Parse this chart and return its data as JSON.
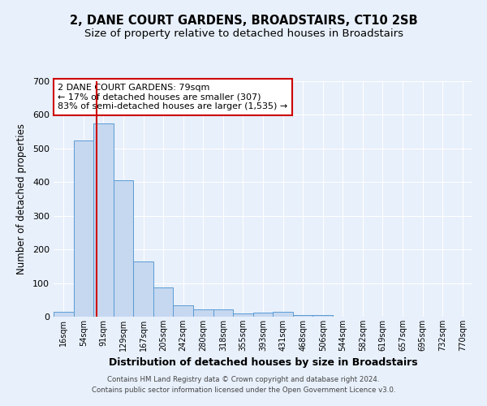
{
  "title1": "2, DANE COURT GARDENS, BROADSTAIRS, CT10 2SB",
  "title2": "Size of property relative to detached houses in Broadstairs",
  "xlabel": "Distribution of detached houses by size in Broadstairs",
  "ylabel": "Number of detached properties",
  "bin_labels": [
    "16sqm",
    "54sqm",
    "91sqm",
    "129sqm",
    "167sqm",
    "205sqm",
    "242sqm",
    "280sqm",
    "318sqm",
    "355sqm",
    "393sqm",
    "431sqm",
    "468sqm",
    "506sqm",
    "544sqm",
    "582sqm",
    "619sqm",
    "657sqm",
    "695sqm",
    "732sqm",
    "770sqm"
  ],
  "bar_values": [
    15,
    523,
    575,
    405,
    163,
    88,
    35,
    22,
    22,
    9,
    13,
    14,
    6,
    5,
    0,
    0,
    0,
    0,
    0,
    0,
    0
  ],
  "bar_color": "#c5d8f0",
  "bar_edge_color": "#5b9bd5",
  "vline_bin_index": 1.65,
  "vline_color": "#cc0000",
  "annotation_text": "2 DANE COURT GARDENS: 79sqm\n← 17% of detached houses are smaller (307)\n83% of semi-detached houses are larger (1,535) →",
  "annotation_box_color": "#ffffff",
  "annotation_box_edge_color": "#cc0000",
  "annotation_fontsize": 8.0,
  "footer1": "Contains HM Land Registry data © Crown copyright and database right 2024.",
  "footer2": "Contains public sector information licensed under the Open Government Licence v3.0.",
  "ylim": [
    0,
    700
  ],
  "yticks": [
    0,
    100,
    200,
    300,
    400,
    500,
    600,
    700
  ],
  "bg_color": "#e8f0fb",
  "plot_bg_color": "#e8f0fb",
  "grid_color": "#ffffff",
  "title1_fontsize": 10.5,
  "title2_fontsize": 9.5
}
